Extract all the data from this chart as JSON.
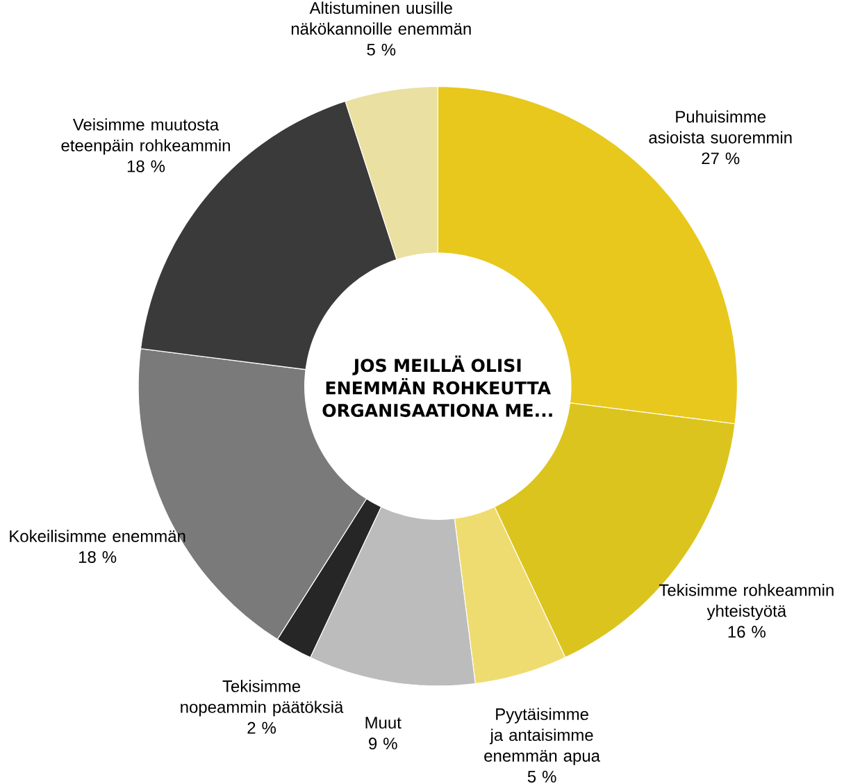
{
  "chart_data": {
    "type": "donut",
    "title": "JOS MEILLÄ OLISI ENEMMÄN ROHKEUTTA ORGANISAATIONA ME...",
    "categories": [
      "Puhuisimme asioista suoremmin",
      "Tekisimme rohkeammin yhteistyötä",
      "Pyytäisimme ja antaisimme enemmän apua",
      "Muut",
      "Tekisimme nopeammin päätöksiä",
      "Kokeilisimme enemmän",
      "Veisimme muutosta eteenpäin rohkeammin",
      "Altistuminen uusille näkökannoille enemmän"
    ],
    "values": [
      27,
      16,
      5,
      9,
      2,
      18,
      18,
      5
    ],
    "value_labels": [
      "27 %",
      "16 %",
      "5 %",
      "9 %",
      "2 %",
      "18 %",
      "18 %",
      "5 %"
    ],
    "colors": [
      "#e8c81c",
      "#dcc41e",
      "#efdc70",
      "#bcbcbc",
      "#262626",
      "#7a7a7a",
      "#3a3a3a",
      "#e9e0a2"
    ]
  }
}
